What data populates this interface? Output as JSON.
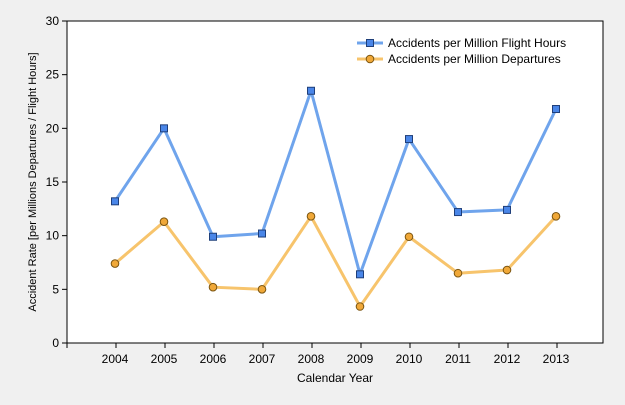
{
  "chart_data": {
    "type": "line",
    "title": "",
    "xlabel": "Calendar Year",
    "ylabel": "Accident Rate [per Millions Departures / Flight Hours]",
    "categories": [
      "2004",
      "2005",
      "2006",
      "2007",
      "2008",
      "2009",
      "2010",
      "2011",
      "2012",
      "2013"
    ],
    "ylim": [
      0,
      30
    ],
    "yticks": [
      "0",
      "5",
      "10",
      "15",
      "20",
      "25",
      "30"
    ],
    "grid": false,
    "legend_position": "top-right",
    "series": [
      {
        "name": "Accidents per Million Flight Hours",
        "marker": "square",
        "color": "#6fa4ec",
        "marker_fill": "#4a86e8",
        "values": [
          13.2,
          20.0,
          9.9,
          10.2,
          23.5,
          6.4,
          19.0,
          12.2,
          12.4,
          21.8
        ]
      },
      {
        "name": "Accidents per Million Departures",
        "marker": "circle",
        "color": "#f7c46c",
        "marker_fill": "#f0a838",
        "values": [
          7.4,
          11.3,
          5.2,
          5.0,
          11.8,
          3.4,
          9.9,
          6.5,
          6.8,
          11.8
        ]
      }
    ]
  }
}
